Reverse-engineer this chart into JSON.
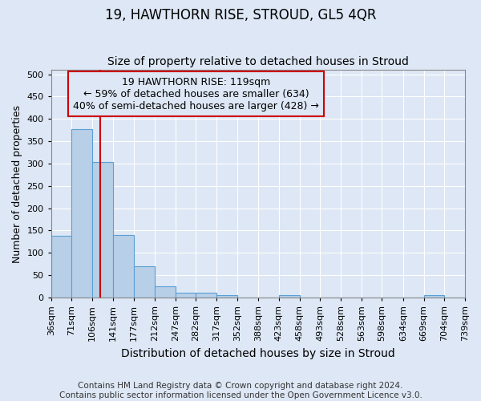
{
  "title": "19, HAWTHORN RISE, STROUD, GL5 4QR",
  "subtitle": "Size of property relative to detached houses in Stroud",
  "xlabel": "Distribution of detached houses by size in Stroud",
  "ylabel": "Number of detached properties",
  "footer_line1": "Contains HM Land Registry data © Crown copyright and database right 2024.",
  "footer_line2": "Contains public sector information licensed under the Open Government Licence v3.0.",
  "bar_left_edges": [
    36,
    71,
    106,
    141,
    177,
    212,
    247,
    282,
    317,
    352,
    388,
    423,
    458,
    493,
    528,
    563,
    598,
    634,
    669,
    704
  ],
  "bar_heights": [
    138,
    378,
    303,
    140,
    70,
    25,
    10,
    10,
    5,
    0,
    0,
    5,
    0,
    0,
    0,
    0,
    0,
    0,
    5,
    0
  ],
  "bar_color": "#b8cfe8",
  "bar_edge_color": "#5a9fd4",
  "property_size": 119,
  "vline_color": "#cc0000",
  "annotation_line1": "19 HAWTHORN RISE: 119sqm",
  "annotation_line2": "← 59% of detached houses are smaller (634)",
  "annotation_line3": "40% of semi-detached houses are larger (428) →",
  "annotation_box_edgecolor": "#cc0000",
  "ylim": [
    0,
    510
  ],
  "yticks": [
    0,
    50,
    100,
    150,
    200,
    250,
    300,
    350,
    400,
    450,
    500
  ],
  "xtick_labels": [
    "36sqm",
    "71sqm",
    "106sqm",
    "141sqm",
    "177sqm",
    "212sqm",
    "247sqm",
    "282sqm",
    "317sqm",
    "352sqm",
    "388sqm",
    "423sqm",
    "458sqm",
    "493sqm",
    "528sqm",
    "563sqm",
    "598sqm",
    "634sqm",
    "669sqm",
    "704sqm",
    "739sqm"
  ],
  "background_color": "#dde7f5",
  "grid_color": "#ffffff",
  "title_fontsize": 12,
  "subtitle_fontsize": 10,
  "ylabel_fontsize": 9,
  "xlabel_fontsize": 10,
  "tick_fontsize": 8,
  "annotation_fontsize": 9,
  "footer_fontsize": 7.5
}
